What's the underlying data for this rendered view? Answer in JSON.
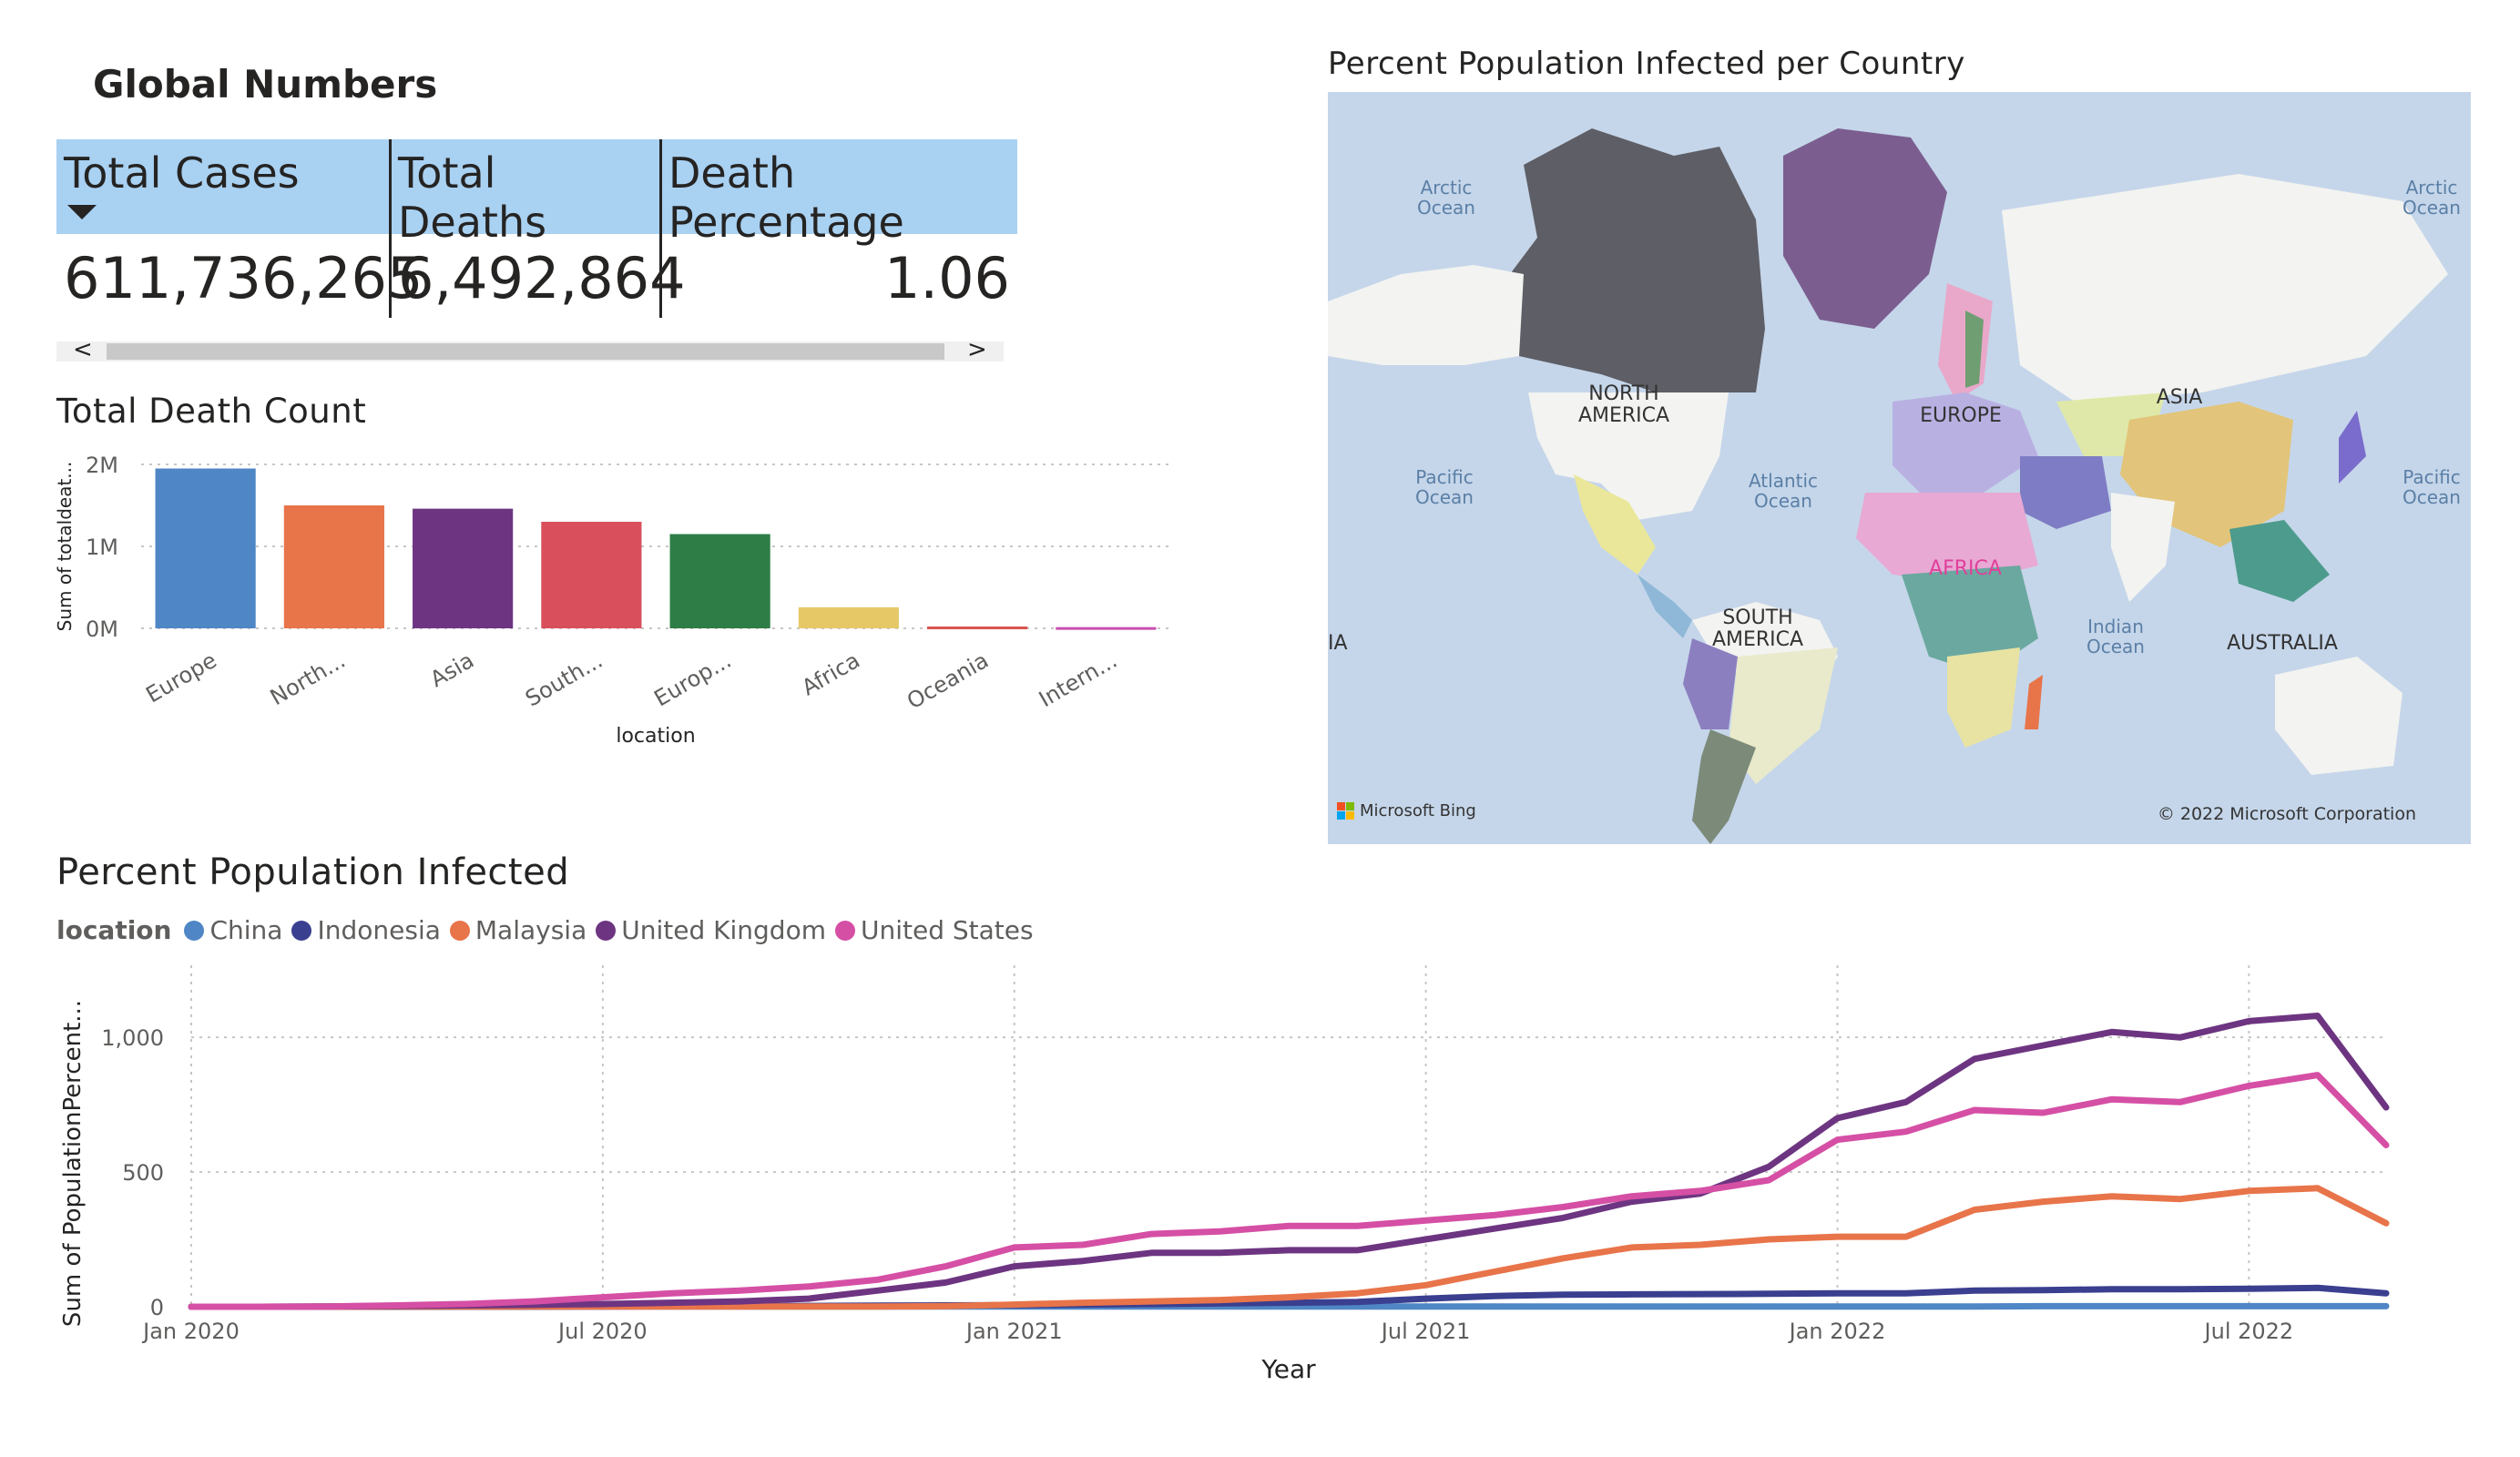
{
  "global_numbers": {
    "title": "Global Numbers",
    "headers": [
      "Total Cases",
      "Total Deaths",
      "Death Percentage"
    ],
    "values": [
      "611,736,265",
      "6,492,864",
      "1.06"
    ],
    "scroll_left": "<",
    "scroll_right": ">"
  },
  "map": {
    "title": "Percent Population Infected per Country",
    "labels": {
      "arctic_left": "Arctic\nOcean",
      "arctic_right": "Arctic\nOcean",
      "north_america": "NORTH\nAMERICA",
      "europe": "EUROPE",
      "asia": "ASIA",
      "pacific_left": "Pacific\nOcean",
      "pacific_right": "Pacific\nOcean",
      "atlantic": "Atlantic\nOcean",
      "africa": "AFRICA",
      "south_america": "SOUTH\nAMERICA",
      "indian": "Indian\nOcean",
      "australia": "AUSTRALIA",
      "edge_left": "IA"
    },
    "attribution_left": "Microsoft Bing",
    "attribution_right": "© 2022 Microsoft Corporation"
  },
  "chart_data": [
    {
      "type": "bar",
      "title": "Total Death Count",
      "xlabel": "location",
      "ylabel": "Sum of totaldeat...",
      "categories": [
        "Europe",
        "North...",
        "Asia",
        "South...",
        "Europ...",
        "Africa",
        "Oceania",
        "Intern..."
      ],
      "values": [
        1950000,
        1500000,
        1460000,
        1300000,
        1150000,
        257000,
        22000,
        15000
      ],
      "colors": [
        "#4f86c6",
        "#e8744a",
        "#6d3581",
        "#d94f5c",
        "#2e7d47",
        "#e6c867",
        "#d9534f",
        "#c94fb0"
      ],
      "ylim": [
        0,
        2000000
      ],
      "yticks": [
        0,
        1000000,
        2000000
      ],
      "ytick_labels": [
        "0M",
        "1M",
        "2M"
      ],
      "grid": true
    },
    {
      "type": "line",
      "title": "Percent Population Infected",
      "xlabel": "Year",
      "ylabel": "Sum of PopulationPercent...",
      "legend_title": "location",
      "legend_position": "top-left",
      "x": [
        "2020-01",
        "2020-02",
        "2020-03",
        "2020-04",
        "2020-05",
        "2020-06",
        "2020-07",
        "2020-08",
        "2020-09",
        "2020-10",
        "2020-11",
        "2020-12",
        "2021-01",
        "2021-02",
        "2021-03",
        "2021-04",
        "2021-05",
        "2021-06",
        "2021-07",
        "2021-08",
        "2021-09",
        "2021-10",
        "2021-11",
        "2021-12",
        "2022-01",
        "2022-02",
        "2022-03",
        "2022-04",
        "2022-05",
        "2022-06",
        "2022-07",
        "2022-08",
        "2022-09"
      ],
      "xtick_labels": [
        "Jan 2020",
        "Jul 2020",
        "Jan 2021",
        "Jul 2021",
        "Jan 2022",
        "Jul 2022"
      ],
      "xtick_positions": [
        0,
        6,
        12,
        18,
        24,
        30
      ],
      "ylim": [
        0,
        1200
      ],
      "yticks": [
        0,
        500,
        1000
      ],
      "ytick_labels": [
        "0",
        "500",
        "1,000"
      ],
      "grid": true,
      "series": [
        {
          "name": "China",
          "color": "#4f86c6",
          "values": [
            0,
            0,
            1,
            1,
            1,
            1,
            1,
            1,
            1,
            1,
            1,
            1,
            1,
            1,
            1,
            1,
            1,
            1,
            1,
            1,
            1,
            1,
            1,
            1,
            1,
            1,
            1,
            2,
            2,
            2,
            2,
            2,
            2
          ]
        },
        {
          "name": "Indonesia",
          "color": "#3a3f8f",
          "values": [
            0,
            0,
            0,
            0,
            0,
            0,
            1,
            2,
            2,
            3,
            4,
            5,
            6,
            8,
            10,
            12,
            15,
            18,
            30,
            40,
            45,
            46,
            47,
            48,
            50,
            50,
            60,
            62,
            65,
            65,
            67,
            70,
            50
          ]
        },
        {
          "name": "Malaysia",
          "color": "#e8744a",
          "values": [
            0,
            0,
            0,
            1,
            1,
            1,
            1,
            1,
            1,
            1,
            1,
            2,
            8,
            15,
            20,
            25,
            35,
            50,
            80,
            130,
            180,
            220,
            230,
            250,
            260,
            260,
            360,
            390,
            410,
            400,
            430,
            440,
            310
          ]
        },
        {
          "name": "United Kingdom",
          "color": "#6d3581",
          "values": [
            0,
            0,
            1,
            3,
            5,
            7,
            10,
            15,
            20,
            30,
            60,
            90,
            150,
            170,
            200,
            200,
            210,
            210,
            250,
            290,
            330,
            390,
            420,
            520,
            700,
            760,
            920,
            970,
            1020,
            1000,
            1060,
            1080,
            740
          ]
        },
        {
          "name": "United States",
          "color": "#d54fa5",
          "values": [
            0,
            0,
            1,
            5,
            10,
            20,
            35,
            50,
            60,
            75,
            100,
            150,
            220,
            230,
            270,
            280,
            300,
            300,
            320,
            340,
            370,
            410,
            430,
            470,
            620,
            650,
            730,
            720,
            770,
            760,
            820,
            860,
            600
          ]
        }
      ]
    }
  ]
}
